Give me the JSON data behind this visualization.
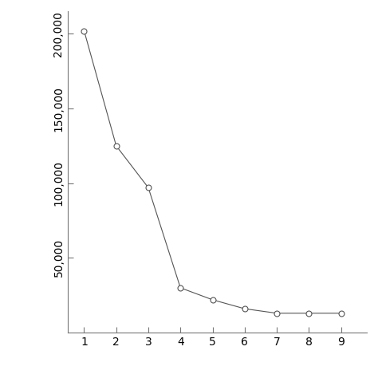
{
  "x": [
    1,
    2,
    3,
    4,
    5,
    6,
    7,
    8,
    9
  ],
  "y": [
    202000,
    125000,
    97000,
    30000,
    22000,
    16000,
    13000,
    13000,
    13000
  ],
  "xlim": [
    0.5,
    9.8
  ],
  "ylim": [
    0,
    215000
  ],
  "yticks": [
    50000,
    100000,
    150000,
    200000
  ],
  "ytick_labels": [
    "50,000",
    "100,000",
    "150,000",
    "200,000"
  ],
  "xticks": [
    1,
    2,
    3,
    4,
    5,
    6,
    7,
    8,
    9
  ],
  "line_color": "#555555",
  "marker": "o",
  "marker_facecolor": "white",
  "marker_edgecolor": "#555555",
  "marker_size": 5,
  "line_style": "-",
  "line_width": 0.8,
  "background_color": "#ffffff",
  "tick_fontsize": 10,
  "spine_color": "#777777"
}
